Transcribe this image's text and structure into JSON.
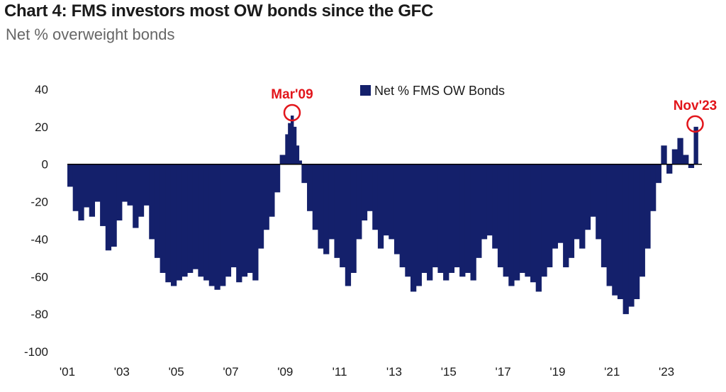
{
  "header": {
    "title": "Chart 4: FMS investors most OW bonds since the GFC",
    "subtitle": "Net % overweight bonds"
  },
  "colors": {
    "bar": "#14206b",
    "annotation": "#e2151b",
    "axis": "#000000"
  },
  "chart_data": {
    "type": "bar",
    "title": "Chart 4: FMS investors most OW bonds since the GFC",
    "subtitle": "Net % overweight bonds",
    "ylim": [
      -100,
      40
    ],
    "yticks": [
      40,
      20,
      0,
      -20,
      -40,
      -60,
      -80,
      -100
    ],
    "xticks": [
      {
        "label": "'01",
        "x": 2001
      },
      {
        "label": "'03",
        "x": 2003
      },
      {
        "label": "'05",
        "x": 2005
      },
      {
        "label": "'07",
        "x": 2007
      },
      {
        "label": "'09",
        "x": 2009
      },
      {
        "label": "'11",
        "x": 2011
      },
      {
        "label": "'13",
        "x": 2013
      },
      {
        "label": "'15",
        "x": 2015
      },
      {
        "label": "'17",
        "x": 2017
      },
      {
        "label": "'19",
        "x": 2019
      },
      {
        "label": "'21",
        "x": 2021
      },
      {
        "label": "'23",
        "x": 2023
      }
    ],
    "xlim": [
      2001,
      2024.3
    ],
    "grid": false,
    "legend": {
      "position": "top-center",
      "entries": [
        "Net % FMS OW Bonds"
      ]
    },
    "series": [
      {
        "name": "Net % FMS OW Bonds",
        "points": [
          [
            2001.0,
            -12
          ],
          [
            2001.2,
            -25
          ],
          [
            2001.4,
            -30
          ],
          [
            2001.6,
            -23
          ],
          [
            2001.8,
            -28
          ],
          [
            2002.0,
            -20
          ],
          [
            2002.2,
            -33
          ],
          [
            2002.4,
            -46
          ],
          [
            2002.6,
            -44
          ],
          [
            2002.8,
            -30
          ],
          [
            2003.0,
            -20
          ],
          [
            2003.2,
            -22
          ],
          [
            2003.4,
            -34
          ],
          [
            2003.6,
            -28
          ],
          [
            2003.8,
            -22
          ],
          [
            2004.0,
            -40
          ],
          [
            2004.2,
            -50
          ],
          [
            2004.4,
            -58
          ],
          [
            2004.6,
            -63
          ],
          [
            2004.8,
            -65
          ],
          [
            2005.0,
            -62
          ],
          [
            2005.2,
            -60
          ],
          [
            2005.4,
            -58
          ],
          [
            2005.6,
            -56
          ],
          [
            2005.8,
            -60
          ],
          [
            2006.0,
            -62
          ],
          [
            2006.2,
            -65
          ],
          [
            2006.4,
            -67
          ],
          [
            2006.6,
            -65
          ],
          [
            2006.8,
            -60
          ],
          [
            2007.0,
            -55
          ],
          [
            2007.2,
            -63
          ],
          [
            2007.4,
            -60
          ],
          [
            2007.6,
            -58
          ],
          [
            2007.8,
            -62
          ],
          [
            2008.0,
            -45
          ],
          [
            2008.2,
            -35
          ],
          [
            2008.4,
            -28
          ],
          [
            2008.6,
            -15
          ],
          [
            2008.8,
            5
          ],
          [
            2009.0,
            16
          ],
          [
            2009.1,
            22
          ],
          [
            2009.2,
            26
          ],
          [
            2009.3,
            20
          ],
          [
            2009.4,
            10
          ],
          [
            2009.5,
            2
          ],
          [
            2009.6,
            -10
          ],
          [
            2009.8,
            -25
          ],
          [
            2010.0,
            -35
          ],
          [
            2010.2,
            -45
          ],
          [
            2010.4,
            -48
          ],
          [
            2010.6,
            -40
          ],
          [
            2010.8,
            -50
          ],
          [
            2011.0,
            -55
          ],
          [
            2011.2,
            -65
          ],
          [
            2011.4,
            -58
          ],
          [
            2011.6,
            -40
          ],
          [
            2011.8,
            -30
          ],
          [
            2012.0,
            -25
          ],
          [
            2012.2,
            -35
          ],
          [
            2012.4,
            -45
          ],
          [
            2012.6,
            -38
          ],
          [
            2012.8,
            -40
          ],
          [
            2013.0,
            -48
          ],
          [
            2013.2,
            -55
          ],
          [
            2013.4,
            -60
          ],
          [
            2013.6,
            -68
          ],
          [
            2013.8,
            -65
          ],
          [
            2014.0,
            -58
          ],
          [
            2014.2,
            -62
          ],
          [
            2014.4,
            -55
          ],
          [
            2014.6,
            -58
          ],
          [
            2014.8,
            -62
          ],
          [
            2015.0,
            -58
          ],
          [
            2015.2,
            -55
          ],
          [
            2015.4,
            -60
          ],
          [
            2015.6,
            -58
          ],
          [
            2015.8,
            -62
          ],
          [
            2016.0,
            -50
          ],
          [
            2016.2,
            -40
          ],
          [
            2016.4,
            -38
          ],
          [
            2016.6,
            -45
          ],
          [
            2016.8,
            -55
          ],
          [
            2017.0,
            -60
          ],
          [
            2017.2,
            -65
          ],
          [
            2017.4,
            -62
          ],
          [
            2017.6,
            -58
          ],
          [
            2017.8,
            -60
          ],
          [
            2018.0,
            -63
          ],
          [
            2018.2,
            -68
          ],
          [
            2018.4,
            -60
          ],
          [
            2018.6,
            -55
          ],
          [
            2018.8,
            -45
          ],
          [
            2019.0,
            -42
          ],
          [
            2019.2,
            -55
          ],
          [
            2019.4,
            -50
          ],
          [
            2019.6,
            -40
          ],
          [
            2019.8,
            -45
          ],
          [
            2020.0,
            -35
          ],
          [
            2020.2,
            -28
          ],
          [
            2020.4,
            -40
          ],
          [
            2020.6,
            -55
          ],
          [
            2020.8,
            -65
          ],
          [
            2021.0,
            -70
          ],
          [
            2021.2,
            -72
          ],
          [
            2021.4,
            -80
          ],
          [
            2021.6,
            -76
          ],
          [
            2021.8,
            -72
          ],
          [
            2022.0,
            -60
          ],
          [
            2022.2,
            -45
          ],
          [
            2022.4,
            -25
          ],
          [
            2022.6,
            -10
          ],
          [
            2022.8,
            10
          ],
          [
            2023.0,
            -5
          ],
          [
            2023.2,
            8
          ],
          [
            2023.4,
            14
          ],
          [
            2023.6,
            5
          ],
          [
            2023.8,
            -2
          ],
          [
            2024.0,
            20
          ]
        ]
      }
    ],
    "annotations": [
      {
        "label": "Mar'09",
        "x": 2009.2,
        "y": 26
      },
      {
        "label": "Nov'23",
        "x": 2024.0,
        "y": 20
      }
    ]
  }
}
